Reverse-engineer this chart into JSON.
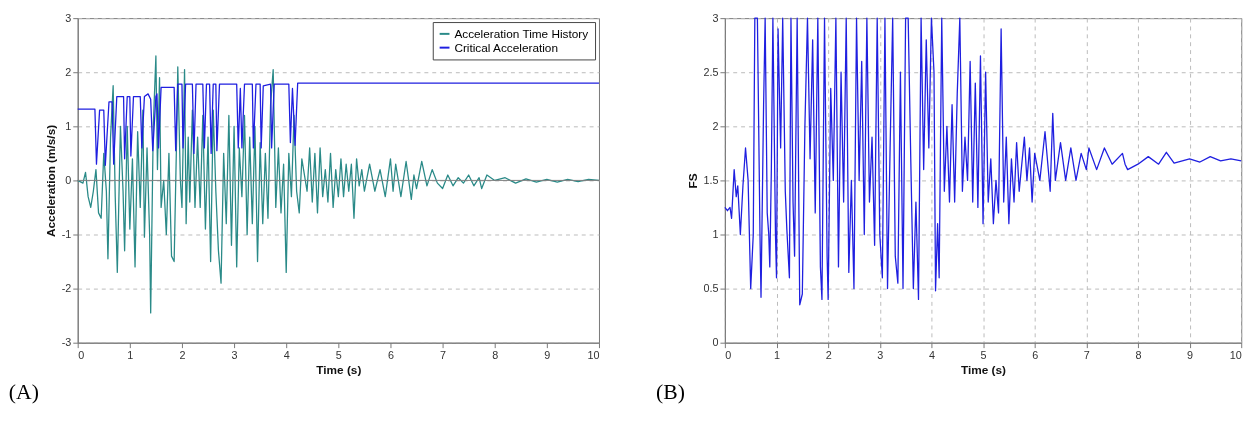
{
  "chart_data": [
    {
      "type": "line",
      "xlabel": "Time (s)",
      "ylabel": "Acceleration (m/s/s)",
      "annotations": [
        "(A)"
      ],
      "xlim": [
        0,
        10
      ],
      "xticks": [
        0,
        1,
        2,
        3,
        4,
        5,
        6,
        7,
        8,
        9,
        10
      ],
      "ylim": [
        -3,
        3
      ],
      "yticks": [
        -3,
        -2,
        -1,
        0,
        1,
        2,
        3
      ],
      "grid": "y",
      "legend": "top right",
      "line_style": "solid",
      "ref_lines": [
        {
          "axis": "y",
          "value": 0,
          "color": "#808080"
        }
      ],
      "series": [
        {
          "name": "Acceleration Time History",
          "color": "#2a8a88",
          "x": [
            0,
            0.1,
            0.15,
            0.2,
            0.25,
            0.3,
            0.35,
            0.4,
            0.45,
            0.5,
            0.55,
            0.58,
            0.63,
            0.68,
            0.72,
            0.76,
            0.82,
            0.87,
            0.9,
            0.95,
            1.0,
            1.05,
            1.1,
            1.15,
            1.2,
            1.25,
            1.28,
            1.33,
            1.38,
            1.4,
            1.45,
            1.5,
            1.53,
            1.57,
            1.6,
            1.65,
            1.7,
            1.75,
            1.8,
            1.85,
            1.9,
            1.92,
            1.97,
            2.0,
            2.05,
            2.08,
            2.12,
            2.15,
            2.2,
            2.25,
            2.3,
            2.35,
            2.4,
            2.45,
            2.5,
            2.55,
            2.6,
            2.65,
            2.7,
            2.75,
            2.8,
            2.85,
            2.9,
            2.95,
            3.0,
            3.05,
            3.1,
            3.15,
            3.2,
            3.25,
            3.3,
            3.35,
            3.4,
            3.45,
            3.5,
            3.55,
            3.6,
            3.65,
            3.7,
            3.75,
            3.8,
            3.85,
            3.9,
            3.95,
            4.0,
            4.05,
            4.1,
            4.15,
            4.2,
            4.25,
            4.3,
            4.4,
            4.45,
            4.5,
            4.55,
            4.6,
            4.65,
            4.7,
            4.75,
            4.8,
            4.85,
            4.9,
            4.95,
            5.0,
            5.05,
            5.1,
            5.15,
            5.2,
            5.25,
            5.3,
            5.35,
            5.4,
            5.45,
            5.5,
            5.6,
            5.7,
            5.8,
            5.9,
            6.0,
            6.05,
            6.1,
            6.2,
            6.3,
            6.4,
            6.45,
            6.5,
            6.6,
            6.7,
            6.8,
            6.9,
            7.0,
            7.1,
            7.2,
            7.3,
            7.4,
            7.5,
            7.6,
            7.7,
            7.75,
            7.85,
            8.0,
            8.2,
            8.4,
            8.6,
            8.8,
            9.0,
            9.2,
            9.4,
            9.6,
            9.8,
            10.0
          ],
          "values": [
            0,
            -0.05,
            0.15,
            -0.3,
            -0.5,
            -0.2,
            0.2,
            -0.6,
            -0.7,
            0.5,
            -0.2,
            -1.45,
            0.8,
            1.75,
            -0.3,
            -1.7,
            1.0,
            -0.2,
            -1.3,
            1.0,
            -0.9,
            0.4,
            -1.6,
            0.9,
            -0.5,
            1.3,
            -1.05,
            0.6,
            -1.0,
            -2.45,
            1.0,
            2.3,
            0.2,
            1.9,
            -0.5,
            0.0,
            -1.0,
            0.5,
            -1.4,
            -1.5,
            0.9,
            2.1,
            0.0,
            -0.5,
            2.05,
            -0.8,
            0.8,
            -0.4,
            1.3,
            -0.5,
            0.8,
            -0.5,
            1.2,
            -0.9,
            0.8,
            -1.5,
            1.3,
            -0.2,
            -1.3,
            -1.9,
            0.5,
            -0.8,
            1.2,
            -1.2,
            1.0,
            -1.6,
            0.6,
            -0.3,
            1.2,
            -1.0,
            0.8,
            -0.8,
            1.0,
            -1.5,
            0.7,
            -0.8,
            0.5,
            -0.7,
            1.4,
            2.05,
            -0.5,
            0.6,
            -0.6,
            0.3,
            -1.7,
            0.5,
            -0.3,
            1.2,
            -0.2,
            -0.6,
            0.4,
            -0.2,
            0.6,
            -0.4,
            0.5,
            -0.6,
            0.6,
            -0.3,
            0.2,
            -0.4,
            0.5,
            -0.5,
            0.2,
            -0.3,
            0.4,
            -0.3,
            0.3,
            -0.2,
            0.3,
            -0.7,
            0.4,
            -0.1,
            0.2,
            -0.2,
            0.3,
            -0.2,
            0.2,
            -0.3,
            0.4,
            -0.2,
            0.3,
            -0.3,
            0.35,
            -0.35,
            0.1,
            -0.15,
            0.35,
            -0.1,
            0.2,
            -0.05,
            -0.15,
            0.1,
            -0.1,
            0.05,
            -0.05,
            0.1,
            -0.1,
            0.05,
            -0.15,
            0.1,
            0.0,
            0.05,
            -0.05,
            0.03,
            -0.03,
            0.02,
            -0.03,
            0.02,
            -0.02,
            0.02,
            0.0
          ]
        },
        {
          "name": "Critical Acceleration",
          "color": "#1f1fe0",
          "x": [
            0,
            0.33,
            0.36,
            0.42,
            0.5,
            0.53,
            0.6,
            0.66,
            0.69,
            0.75,
            0.88,
            0.9,
            0.95,
            1.0,
            1.02,
            1.07,
            1.2,
            1.23,
            1.28,
            1.35,
            1.4,
            1.44,
            1.5,
            1.52,
            1.55,
            1.6,
            1.85,
            1.88,
            1.92,
            2.0,
            2.02,
            2.07,
            2.2,
            2.23,
            2.27,
            2.4,
            2.43,
            2.47,
            2.53,
            2.56,
            2.6,
            2.65,
            2.67,
            2.72,
            3.05,
            3.08,
            3.12,
            3.15,
            3.2,
            3.35,
            3.37,
            3.42,
            3.5,
            3.52,
            3.56,
            3.7,
            3.72,
            3.77,
            4.05,
            4.08,
            4.12,
            4.17,
            4.22,
            10
          ],
          "values": [
            1.32,
            1.32,
            0.3,
            1.3,
            1.3,
            0.28,
            1.45,
            1.45,
            0.3,
            1.55,
            1.55,
            0.4,
            1.55,
            1.55,
            0.45,
            1.55,
            1.55,
            0.6,
            1.55,
            1.6,
            1.5,
            0.55,
            1.55,
            1.6,
            0.6,
            1.72,
            1.72,
            0.55,
            1.78,
            1.78,
            0.6,
            1.78,
            1.78,
            0.5,
            1.78,
            1.78,
            0.6,
            1.78,
            1.78,
            0.5,
            1.78,
            1.78,
            0.55,
            1.78,
            1.78,
            0.6,
            1.7,
            0.6,
            1.78,
            1.78,
            0.6,
            1.78,
            1.78,
            0.6,
            1.75,
            1.78,
            0.6,
            1.78,
            1.78,
            0.7,
            1.7,
            0.65,
            1.8,
            1.8
          ]
        }
      ]
    },
    {
      "type": "line",
      "xlabel": "Time (s)",
      "ylabel": "FS",
      "annotations": [
        "(B)"
      ],
      "xlim": [
        0,
        10
      ],
      "xticks": [
        0,
        1,
        2,
        3,
        4,
        5,
        6,
        7,
        8,
        9,
        10
      ],
      "ylim": [
        0,
        3
      ],
      "yticks": [
        0,
        0.5,
        1,
        1.5,
        2,
        2.5,
        3
      ],
      "grid": true,
      "line_style": "solid",
      "series": [
        {
          "color": "#1f1fe0",
          "x": [
            0,
            0.05,
            0.1,
            0.13,
            0.18,
            0.22,
            0.25,
            0.3,
            0.35,
            0.4,
            0.45,
            0.5,
            0.55,
            0.58,
            0.63,
            0.68,
            0.7,
            0.75,
            0.78,
            0.82,
            0.85,
            0.87,
            0.9,
            0.93,
            0.98,
            1.0,
            1.03,
            1.08,
            1.12,
            1.17,
            1.2,
            1.25,
            1.28,
            1.32,
            1.35,
            1.4,
            1.45,
            1.5,
            1.55,
            1.6,
            1.65,
            1.7,
            1.75,
            1.8,
            1.85,
            1.88,
            1.93,
            1.98,
            2.0,
            2.05,
            2.1,
            2.15,
            2.2,
            2.25,
            2.3,
            2.35,
            2.4,
            2.45,
            2.5,
            2.55,
            2.6,
            2.65,
            2.7,
            2.75,
            2.8,
            2.85,
            2.9,
            2.95,
            3.0,
            3.05,
            3.1,
            3.15,
            3.2,
            3.25,
            3.3,
            3.35,
            3.4,
            3.45,
            3.5,
            3.55,
            3.6,
            3.65,
            3.7,
            3.75,
            3.8,
            3.85,
            3.9,
            3.95,
            4.0,
            4.05,
            4.08,
            4.12,
            4.15,
            4.2,
            4.25,
            4.3,
            4.35,
            4.4,
            4.45,
            4.5,
            4.55,
            4.6,
            4.65,
            4.7,
            4.75,
            4.8,
            4.85,
            4.9,
            4.95,
            5.0,
            5.05,
            5.1,
            5.15,
            5.2,
            5.25,
            5.3,
            5.35,
            5.4,
            5.45,
            5.5,
            5.55,
            5.6,
            5.65,
            5.7,
            5.8,
            5.85,
            5.9,
            5.95,
            6.0,
            6.1,
            6.2,
            6.3,
            6.35,
            6.4,
            6.5,
            6.6,
            6.7,
            6.8,
            6.9,
            7.0,
            7.05,
            7.2,
            7.35,
            7.5,
            7.7,
            7.75,
            7.8,
            8.0,
            8.2,
            8.4,
            8.55,
            8.7,
            9.0,
            9.2,
            9.4,
            9.6,
            9.8,
            10
          ],
          "values": [
            1.25,
            1.22,
            1.25,
            1.15,
            1.6,
            1.35,
            1.45,
            1.0,
            1.45,
            1.8,
            1.5,
            0.5,
            1.0,
            3,
            3,
            1.0,
            0.42,
            2.2,
            3,
            1.2,
            1.0,
            0.7,
            1.6,
            3,
            1.0,
            0.6,
            2.9,
            1.8,
            3,
            1.4,
            1.05,
            0.6,
            3,
            1.3,
            0.8,
            3,
            0.35,
            0.45,
            2.0,
            3,
            1.7,
            2.8,
            1.2,
            3,
            0.7,
            0.4,
            3,
            0.8,
            0.4,
            2.35,
            1.5,
            3,
            0.7,
            2.5,
            1.3,
            3,
            0.65,
            1.5,
            0.5,
            3,
            1.5,
            2.6,
            1.0,
            3,
            1.3,
            1.9,
            0.9,
            3,
            1.0,
            0.6,
            3,
            0.5,
            1.8,
            3,
            0.8,
            0.55,
            2.5,
            0.5,
            3,
            3,
            1.7,
            0.5,
            1.3,
            0.4,
            3,
            1.6,
            2.8,
            1.8,
            3,
            2.5,
            0.48,
            1.1,
            0.6,
            3,
            1.4,
            2.0,
            1.3,
            2.2,
            1.3,
            2.3,
            3,
            1.4,
            1.9,
            1.5,
            2.6,
            1.3,
            2.4,
            1.25,
            2.65,
            1.1,
            2.5,
            1.3,
            1.7,
            1.1,
            1.5,
            1.2,
            2.9,
            1.3,
            1.9,
            1.1,
            1.7,
            1.3,
            1.85,
            1.4,
            1.9,
            1.5,
            1.8,
            1.3,
            1.75,
            1.5,
            1.95,
            1.4,
            2.12,
            1.5,
            1.85,
            1.5,
            1.8,
            1.5,
            1.75,
            1.6,
            1.8,
            1.6,
            1.8,
            1.65,
            1.75,
            1.65,
            1.6,
            1.65,
            1.72,
            1.65,
            1.76,
            1.66,
            1.7,
            1.67,
            1.72,
            1.68,
            1.7,
            1.68
          ]
        }
      ]
    }
  ]
}
